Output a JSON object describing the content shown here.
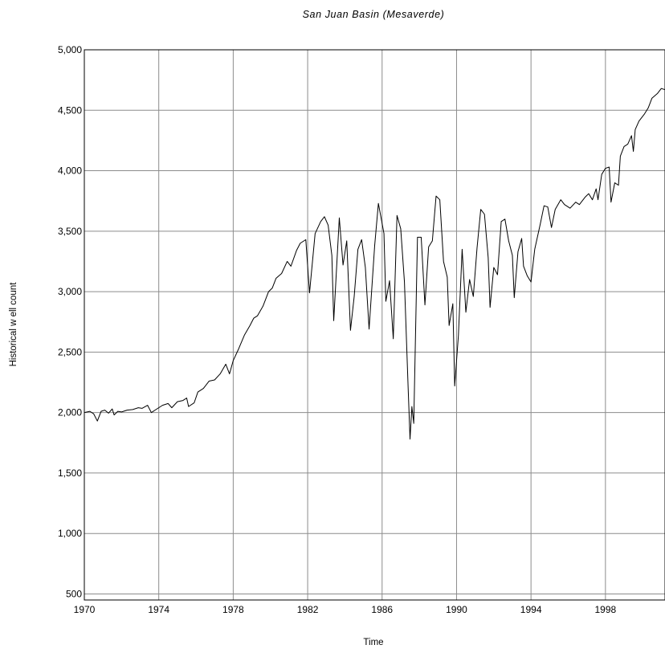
{
  "chart_data": {
    "type": "line",
    "title": "San Juan Basin (Mesaverde)",
    "xlabel": "Time",
    "ylabel": "Historical w ell count",
    "xlim": [
      1970,
      1999.7
    ],
    "ylim": [
      450,
      5000
    ],
    "x_ticks": [
      {
        "value": 1970,
        "label": "1970"
      },
      {
        "value": 1974,
        "label": "1974"
      },
      {
        "value": 1978,
        "label": "1978"
      },
      {
        "value": 1982,
        "label": "1982"
      },
      {
        "value": 1986,
        "label": "1986"
      },
      {
        "value": 1990,
        "label": "1990"
      },
      {
        "value": 1994,
        "label": "1994"
      },
      {
        "value": 1998,
        "label": "1998"
      }
    ],
    "y_ticks": [
      {
        "value": 500,
        "label": "500"
      },
      {
        "value": 1000,
        "label": "1,000"
      },
      {
        "value": 1500,
        "label": "1,500"
      },
      {
        "value": 2000,
        "label": "2,000"
      },
      {
        "value": 2500,
        "label": "2,500"
      },
      {
        "value": 3000,
        "label": "3,000"
      },
      {
        "value": 3500,
        "label": "3,500"
      },
      {
        "value": 4000,
        "label": "4,000"
      },
      {
        "value": 4500,
        "label": "4,500"
      },
      {
        "value": 5000,
        "label": "5,000"
      }
    ],
    "grid": true,
    "legend": "none",
    "line_color": "#000000",
    "grid_color": "#8c8c8c",
    "series": [
      {
        "points": [
          [
            1970.0,
            2000
          ],
          [
            1970.3,
            2010
          ],
          [
            1970.5,
            1990
          ],
          [
            1970.7,
            1930
          ],
          [
            1970.9,
            2010
          ],
          [
            1971.1,
            2020
          ],
          [
            1971.3,
            1995
          ],
          [
            1971.5,
            2030
          ],
          [
            1971.6,
            1980
          ],
          [
            1971.8,
            2010
          ],
          [
            1972.0,
            2005
          ],
          [
            1972.3,
            2020
          ],
          [
            1972.6,
            2025
          ],
          [
            1972.9,
            2040
          ],
          [
            1973.1,
            2035
          ],
          [
            1973.4,
            2060
          ],
          [
            1973.6,
            2000
          ],
          [
            1973.8,
            2020
          ],
          [
            1974.0,
            2040
          ],
          [
            1974.2,
            2060
          ],
          [
            1974.5,
            2075
          ],
          [
            1974.7,
            2040
          ],
          [
            1975.0,
            2090
          ],
          [
            1975.3,
            2100
          ],
          [
            1975.5,
            2120
          ],
          [
            1975.6,
            2050
          ],
          [
            1975.9,
            2080
          ],
          [
            1976.1,
            2170
          ],
          [
            1976.4,
            2200
          ],
          [
            1976.7,
            2260
          ],
          [
            1977.0,
            2270
          ],
          [
            1977.3,
            2320
          ],
          [
            1977.6,
            2400
          ],
          [
            1977.8,
            2320
          ],
          [
            1978.0,
            2430
          ],
          [
            1978.3,
            2530
          ],
          [
            1978.6,
            2640
          ],
          [
            1978.9,
            2720
          ],
          [
            1979.1,
            2780
          ],
          [
            1979.3,
            2800
          ],
          [
            1979.6,
            2880
          ],
          [
            1979.9,
            3000
          ],
          [
            1980.1,
            3030
          ],
          [
            1980.3,
            3110
          ],
          [
            1980.6,
            3150
          ],
          [
            1980.9,
            3250
          ],
          [
            1981.1,
            3210
          ],
          [
            1981.4,
            3340
          ],
          [
            1981.6,
            3400
          ],
          [
            1981.9,
            3430
          ],
          [
            1982.1,
            2990
          ],
          [
            1982.4,
            3480
          ],
          [
            1982.7,
            3580
          ],
          [
            1982.9,
            3620
          ],
          [
            1983.1,
            3550
          ],
          [
            1983.3,
            3300
          ],
          [
            1983.4,
            2760
          ],
          [
            1983.7,
            3610
          ],
          [
            1983.9,
            3220
          ],
          [
            1984.1,
            3420
          ],
          [
            1984.3,
            2680
          ],
          [
            1984.5,
            2960
          ],
          [
            1984.7,
            3350
          ],
          [
            1984.9,
            3430
          ],
          [
            1985.1,
            3200
          ],
          [
            1985.3,
            2690
          ],
          [
            1985.6,
            3380
          ],
          [
            1985.8,
            3730
          ],
          [
            1986.1,
            3480
          ],
          [
            1986.2,
            2920
          ],
          [
            1986.4,
            3090
          ],
          [
            1986.6,
            2610
          ],
          [
            1986.8,
            3630
          ],
          [
            1987.0,
            3520
          ],
          [
            1987.2,
            3080
          ],
          [
            1987.4,
            2200
          ],
          [
            1987.5,
            1780
          ],
          [
            1987.6,
            2050
          ],
          [
            1987.7,
            1910
          ],
          [
            1987.9,
            3450
          ],
          [
            1988.1,
            3450
          ],
          [
            1988.3,
            2890
          ],
          [
            1988.5,
            3370
          ],
          [
            1988.7,
            3420
          ],
          [
            1988.9,
            3790
          ],
          [
            1989.1,
            3760
          ],
          [
            1989.3,
            3250
          ],
          [
            1989.5,
            3120
          ],
          [
            1989.6,
            2720
          ],
          [
            1989.8,
            2900
          ],
          [
            1989.9,
            2220
          ],
          [
            1990.1,
            2640
          ],
          [
            1990.3,
            3350
          ],
          [
            1990.5,
            2830
          ],
          [
            1990.7,
            3100
          ],
          [
            1990.9,
            2960
          ],
          [
            1991.1,
            3360
          ],
          [
            1991.3,
            3680
          ],
          [
            1991.5,
            3640
          ],
          [
            1991.7,
            3280
          ],
          [
            1991.8,
            2870
          ],
          [
            1992.0,
            3200
          ],
          [
            1992.2,
            3140
          ],
          [
            1992.4,
            3580
          ],
          [
            1992.6,
            3600
          ],
          [
            1992.8,
            3420
          ],
          [
            1993.0,
            3300
          ],
          [
            1993.1,
            2950
          ],
          [
            1993.3,
            3330
          ],
          [
            1993.5,
            3440
          ],
          [
            1993.6,
            3210
          ],
          [
            1993.8,
            3130
          ],
          [
            1994.0,
            3080
          ],
          [
            1994.2,
            3350
          ],
          [
            1994.5,
            3560
          ],
          [
            1994.7,
            3710
          ],
          [
            1994.9,
            3700
          ],
          [
            1995.1,
            3530
          ],
          [
            1995.3,
            3680
          ],
          [
            1995.6,
            3760
          ],
          [
            1995.8,
            3720
          ],
          [
            1996.1,
            3690
          ],
          [
            1996.4,
            3740
          ],
          [
            1996.6,
            3720
          ],
          [
            1996.9,
            3780
          ],
          [
            1997.1,
            3810
          ],
          [
            1997.3,
            3760
          ],
          [
            1997.5,
            3850
          ],
          [
            1997.6,
            3760
          ],
          [
            1997.8,
            3970
          ],
          [
            1998.0,
            4020
          ],
          [
            1998.2,
            4030
          ],
          [
            1998.3,
            3740
          ],
          [
            1998.5,
            3900
          ],
          [
            1998.7,
            3880
          ],
          [
            1998.8,
            4120
          ],
          [
            1999.0,
            4200
          ],
          [
            1999.2,
            4220
          ],
          [
            1999.4,
            4290
          ],
          [
            1999.5,
            4160
          ],
          [
            1999.6,
            4340
          ],
          [
            1999.8,
            4410
          ],
          [
            2000.1,
            4470
          ],
          [
            2000.3,
            4520
          ],
          [
            2000.5,
            4600
          ],
          [
            2000.8,
            4640
          ],
          [
            2001.0,
            4680
          ],
          [
            2001.2,
            4670
          ]
        ]
      }
    ]
  }
}
